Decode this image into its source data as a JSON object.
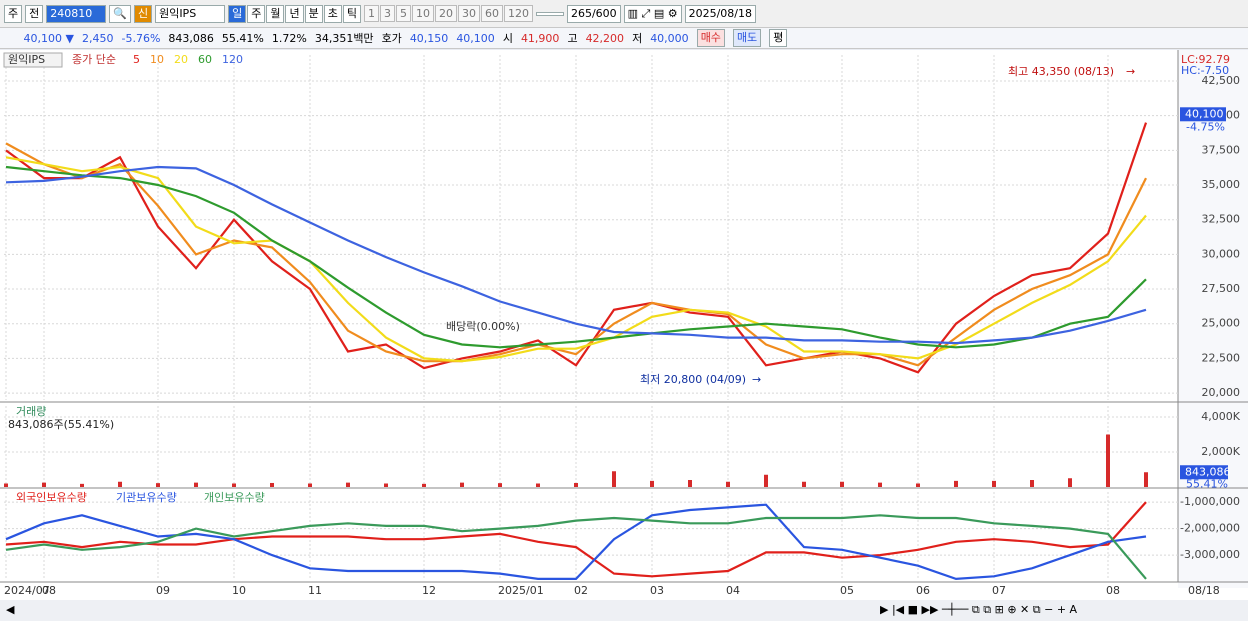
{
  "toolbar": {
    "market": "주",
    "prev": "전",
    "code": "240810",
    "new_badge": "신",
    "name": "원익IPS",
    "periods": [
      "일",
      "주",
      "월",
      "년",
      "분",
      "초",
      "틱"
    ],
    "intervals": [
      "1",
      "3",
      "5",
      "10",
      "20",
      "30",
      "60",
      "120"
    ],
    "count": "265",
    "max": "/600",
    "date": "2025/08/18"
  },
  "info_bar": {
    "price": "40,100 ▼",
    "change": "2,450",
    "change_pct": "-5.76%",
    "volume": "843,086",
    "volume_ratio": "55.41%",
    "turnover": "1.72%",
    "amount": "34,351백만",
    "quote_label": "호가",
    "ask": "40,150",
    "bid": "40,100",
    "open_label": "시",
    "open": "41,900",
    "high_label": "고",
    "high": "42,200",
    "low_label": "저",
    "low": "40,000",
    "buy": "매수",
    "sell": "매도",
    "avg": "평"
  },
  "chart_data": [
    {
      "type": "line",
      "title": "원익IPS",
      "legend_prefix": "종가 단순",
      "grid": true,
      "ylim": [
        19500,
        44375
      ],
      "yticks": [
        {
          "value": 42500,
          "label": "42,500"
        },
        {
          "value": 40000,
          "label": "40,000"
        },
        {
          "value": 37500,
          "label": "37,500"
        },
        {
          "value": 35000,
          "label": "35,000"
        },
        {
          "value": 32500,
          "label": "32,500"
        },
        {
          "value": 30000,
          "label": "30,000"
        },
        {
          "value": 27500,
          "label": "27,500"
        },
        {
          "value": 25000,
          "label": "25,000"
        },
        {
          "value": 22500,
          "label": "22,500"
        },
        {
          "value": 20000,
          "label": "20,000"
        }
      ],
      "series": [
        {
          "name": "5",
          "color": "#e0201b",
          "values": [
            37500,
            35500,
            35500,
            37000,
            32000,
            29000,
            32500,
            29500,
            27500,
            23000,
            23500,
            21800,
            22500,
            23000,
            23800,
            22000,
            26000,
            26500,
            25800,
            25500,
            22000,
            22500,
            23000,
            22500,
            21500,
            25000,
            27000,
            28500,
            29000,
            31500,
            39500
          ]
        },
        {
          "name": "10",
          "color": "#f08c1e",
          "values": [
            38000,
            36500,
            35500,
            36500,
            33500,
            30000,
            31000,
            30500,
            28000,
            24500,
            23000,
            22300,
            22300,
            22800,
            23500,
            22800,
            25000,
            26500,
            26000,
            25700,
            23500,
            22500,
            22800,
            22800,
            22000,
            24000,
            26000,
            27500,
            28500,
            30000,
            35500
          ]
        },
        {
          "name": "20",
          "color": "#f2dc1a",
          "values": [
            37000,
            36500,
            36000,
            36300,
            35500,
            32000,
            30800,
            31000,
            29500,
            26500,
            24000,
            22500,
            22300,
            22600,
            23200,
            23200,
            24000,
            25500,
            26000,
            25800,
            24800,
            23000,
            23000,
            22800,
            22500,
            23500,
            25000,
            26500,
            27800,
            29500,
            32800
          ]
        },
        {
          "name": "60",
          "color": "#2e9b2e",
          "values": [
            36300,
            36000,
            35700,
            35500,
            35000,
            34200,
            33000,
            31000,
            29500,
            27600,
            25800,
            24200,
            23500,
            23300,
            23500,
            23700,
            24000,
            24300,
            24600,
            24800,
            25000,
            24800,
            24600,
            24000,
            23500,
            23300,
            23500,
            24000,
            25000,
            25500,
            28200
          ]
        },
        {
          "name": "120",
          "color": "#3d63e0",
          "values": [
            35200,
            35300,
            35600,
            36000,
            36300,
            36200,
            35000,
            33600,
            32300,
            31000,
            29800,
            28700,
            27700,
            26600,
            25800,
            25000,
            24400,
            24300,
            24200,
            24000,
            24000,
            23800,
            23800,
            23700,
            23700,
            23600,
            23800,
            24000,
            24500,
            25200,
            26000
          ]
        }
      ],
      "last_price": {
        "value": 40100,
        "label": "40,100"
      },
      "annotations": {
        "high": "최고 43,350 (08/13)",
        "low": "최저 20,800 (04/09)",
        "dividend": "배당락(0.00%)",
        "lc": "LC:92.79",
        "hc": "HC:-7.50",
        "last_change": "-4.75%"
      }
    },
    {
      "type": "bar",
      "title": "거래량",
      "subtitle": "843,086주(55.41%)",
      "color": "#d62a2a",
      "grid": true,
      "values": [
        200,
        250,
        180,
        300,
        220,
        250,
        200,
        230,
        200,
        250,
        200,
        180,
        250,
        220,
        200,
        230,
        900,
        350,
        400,
        300,
        700,
        300,
        300,
        250,
        200,
        350,
        350,
        400,
        500,
        3000,
        843.086
      ],
      "ylim": [
        0,
        4630
      ],
      "yticks": [
        {
          "value": 4000,
          "label": "4,000K"
        },
        {
          "value": 2000,
          "label": "2,000K"
        }
      ],
      "last_value": {
        "value": 843.086,
        "label": "843,086"
      },
      "last_ratio": "55.41%"
    },
    {
      "type": "line",
      "grid": true,
      "ylim": [
        -3940000,
        -620000
      ],
      "yticks": [
        {
          "value": -1000000,
          "label": "-1,000,000"
        },
        {
          "value": -2000000,
          "label": "-2,000,000"
        },
        {
          "value": -3000000,
          "label": "-3,000,000"
        }
      ],
      "series": [
        {
          "name": "외국인보유수량",
          "color": "#e0201b",
          "values": [
            -2600000,
            -2500000,
            -2700000,
            -2500000,
            -2600000,
            -2600000,
            -2400000,
            -2300000,
            -2300000,
            -2300000,
            -2400000,
            -2400000,
            -2300000,
            -2200000,
            -2500000,
            -2700000,
            -3700000,
            -3800000,
            -3700000,
            -3600000,
            -2900000,
            -2900000,
            -3100000,
            -3000000,
            -2800000,
            -2500000,
            -2400000,
            -2500000,
            -2700000,
            -2600000,
            -1000000
          ]
        },
        {
          "name": "기관보유수량",
          "color": "#2a55e0",
          "values": [
            -2400000,
            -1800000,
            -1500000,
            -1900000,
            -2300000,
            -2200000,
            -2400000,
            -3000000,
            -3500000,
            -3600000,
            -3600000,
            -3600000,
            -3600000,
            -3700000,
            -3900000,
            -3900000,
            -2400000,
            -1500000,
            -1300000,
            -1200000,
            -1100000,
            -2700000,
            -2800000,
            -3100000,
            -3400000,
            -3900000,
            -3800000,
            -3500000,
            -3000000,
            -2500000,
            -2300000
          ]
        },
        {
          "name": "개인보유수량",
          "color": "#3a9a5a",
          "values": [
            -2800000,
            -2600000,
            -2800000,
            -2700000,
            -2500000,
            -2000000,
            -2300000,
            -2100000,
            -1900000,
            -1800000,
            -1900000,
            -1900000,
            -2100000,
            -2000000,
            -1900000,
            -1700000,
            -1600000,
            -1700000,
            -1800000,
            -1800000,
            -1600000,
            -1600000,
            -1600000,
            -1500000,
            -1600000,
            -1600000,
            -1800000,
            -1900000,
            -2000000,
            -2200000,
            -3900000
          ]
        }
      ],
      "categories": [
        "2024/07",
        "08",
        null,
        null,
        "09",
        null,
        "10",
        null,
        "11",
        null,
        null,
        "12",
        null,
        "2025/01",
        null,
        "02",
        null,
        "03",
        null,
        "04",
        null,
        null,
        "05",
        null,
        "06",
        null,
        "07",
        null,
        null,
        "08",
        null
      ],
      "x_end_label": "08/18"
    }
  ]
}
